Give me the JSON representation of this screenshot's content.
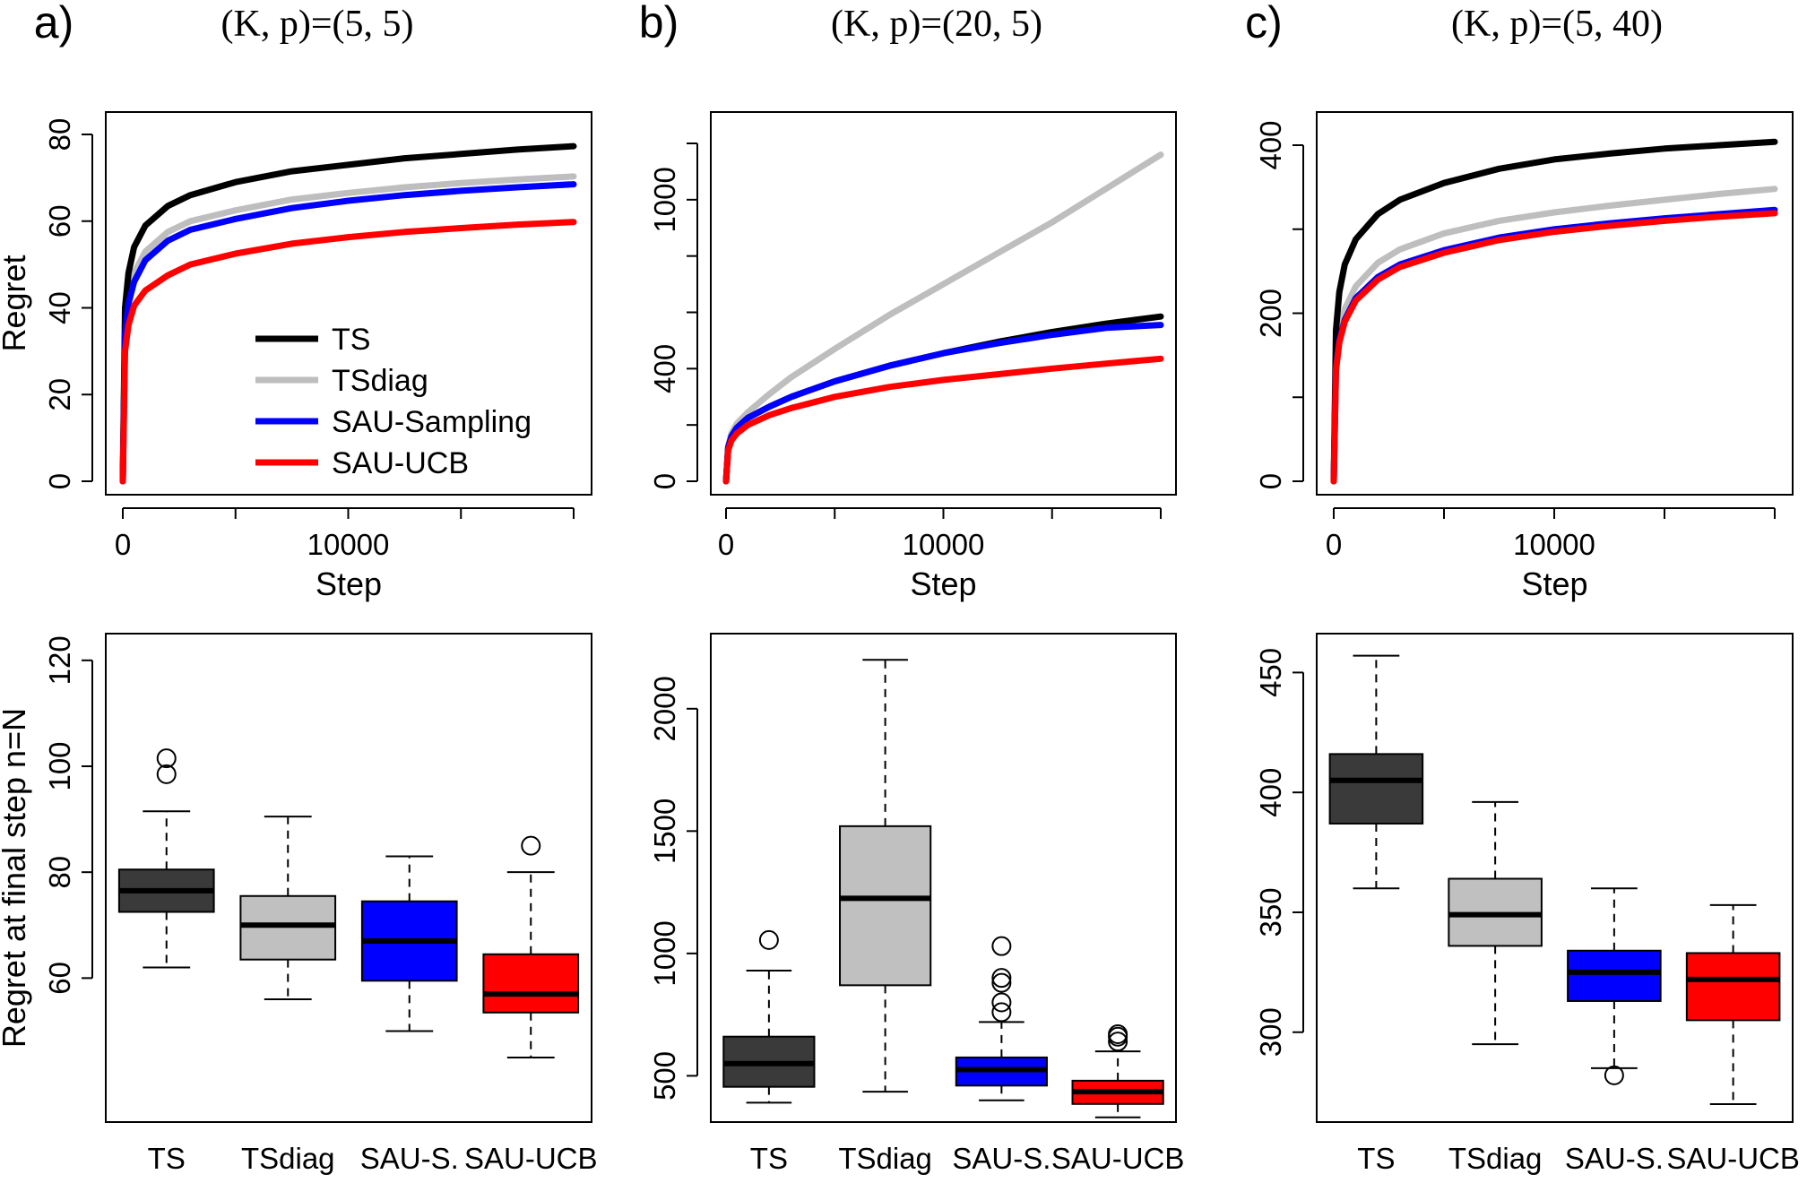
{
  "figure": {
    "panels": [
      {
        "letter": "a)",
        "title": "(K, p)=(5, 5)"
      },
      {
        "letter": "b)",
        "title": "(K, p)=(20, 5)"
      },
      {
        "letter": "c)",
        "title": "(K, p)=(5, 40)"
      }
    ],
    "colors": {
      "TS": "#000000",
      "TSdiag": "#bebebe",
      "SAU-Sampling": "#0000ff",
      "SAU-UCB": "#ff0000"
    },
    "box_colors": {
      "TS": "#3a3a3a",
      "TSdiag": "#c0c0c0",
      "SAU-S.": "#0000ff",
      "SAU-UCB": "#ff0000"
    }
  },
  "chart_data": [
    {
      "type": "line",
      "panel": "a",
      "xlabel": "Step",
      "ylabel": "Regret",
      "xlim": [
        0,
        20000
      ],
      "ylim": [
        0,
        80
      ],
      "xticks": [
        0,
        5000,
        10000,
        15000,
        20000
      ],
      "xtick_labels": [
        "0",
        "",
        "10000",
        "",
        ""
      ],
      "yticks": [
        0,
        20,
        40,
        60,
        80
      ],
      "grid": false,
      "legend_position": "bottom-center",
      "x": [
        0,
        100,
        250,
        500,
        1000,
        2000,
        3000,
        5000,
        7500,
        10000,
        12500,
        15000,
        17500,
        20000
      ],
      "series": [
        {
          "name": "TS",
          "values": [
            0,
            40,
            48,
            54,
            59,
            63.5,
            66,
            69,
            71.5,
            73,
            74.5,
            75.5,
            76.5,
            77.3
          ]
        },
        {
          "name": "TSdiag",
          "values": [
            0,
            36,
            43,
            48,
            53,
            57.5,
            60,
            62.5,
            65,
            66.5,
            67.8,
            68.8,
            69.6,
            70.3
          ]
        },
        {
          "name": "SAU-Sampling",
          "values": [
            0,
            34,
            41,
            46,
            51,
            55.5,
            58,
            60.5,
            63,
            64.7,
            66,
            67,
            67.8,
            68.5
          ]
        },
        {
          "name": "SAU-UCB",
          "values": [
            0,
            30,
            36,
            40.5,
            44,
            47.5,
            50,
            52.5,
            54.8,
            56.3,
            57.5,
            58.4,
            59.2,
            59.8
          ]
        }
      ]
    },
    {
      "type": "line",
      "panel": "b",
      "xlabel": "Step",
      "ylabel": "",
      "xlim": [
        0,
        20000
      ],
      "ylim": [
        0,
        1200
      ],
      "xticks": [
        0,
        5000,
        10000,
        15000,
        20000
      ],
      "xtick_labels": [
        "0",
        "",
        "10000",
        "",
        ""
      ],
      "yticks": [
        0,
        200,
        400,
        600,
        800,
        1000,
        1200
      ],
      "ytick_labels": [
        "0",
        "",
        "400",
        "",
        "",
        "1000",
        ""
      ],
      "grid": false,
      "x": [
        0,
        100,
        250,
        500,
        1000,
        2000,
        3000,
        5000,
        7500,
        10000,
        12500,
        15000,
        17500,
        20000
      ],
      "series": [
        {
          "name": "TS",
          "values": [
            0,
            120,
            160,
            190,
            225,
            265,
            300,
            355,
            410,
            455,
            495,
            530,
            560,
            585
          ]
        },
        {
          "name": "TSdiag",
          "values": [
            0,
            125,
            170,
            205,
            245,
            310,
            370,
            470,
            590,
            700,
            810,
            920,
            1040,
            1160
          ]
        },
        {
          "name": "SAU-Sampling",
          "values": [
            0,
            120,
            160,
            190,
            225,
            265,
            300,
            355,
            410,
            455,
            490,
            520,
            545,
            555
          ]
        },
        {
          "name": "SAU-UCB",
          "values": [
            0,
            110,
            145,
            170,
            200,
            235,
            260,
            300,
            335,
            360,
            380,
            400,
            418,
            435
          ]
        }
      ]
    },
    {
      "type": "line",
      "panel": "c",
      "xlabel": "Step",
      "ylabel": "",
      "xlim": [
        0,
        20000
      ],
      "ylim": [
        0,
        400
      ],
      "xticks": [
        0,
        5000,
        10000,
        15000,
        20000
      ],
      "xtick_labels": [
        "0",
        "",
        "10000",
        "",
        ""
      ],
      "yticks": [
        0,
        100,
        200,
        300,
        400
      ],
      "ytick_labels": [
        "0",
        "",
        "200",
        "",
        "400"
      ],
      "grid": false,
      "x": [
        0,
        100,
        250,
        500,
        1000,
        2000,
        3000,
        5000,
        7500,
        10000,
        12500,
        15000,
        17500,
        20000
      ],
      "series": [
        {
          "name": "TS",
          "values": [
            0,
            180,
            225,
            258,
            288,
            318,
            335,
            355,
            372,
            383,
            390,
            396,
            400,
            404
          ]
        },
        {
          "name": "TSdiag",
          "values": [
            0,
            145,
            180,
            205,
            232,
            260,
            276,
            295,
            310,
            320,
            328,
            335,
            342,
            348
          ]
        },
        {
          "name": "SAU-Sampling",
          "values": [
            0,
            135,
            168,
            192,
            218,
            243,
            258,
            275,
            290,
            300,
            307,
            313,
            318,
            323
          ]
        },
        {
          "name": "SAU-UCB",
          "values": [
            0,
            132,
            165,
            190,
            215,
            240,
            255,
            272,
            287,
            297,
            304,
            310,
            315,
            319
          ]
        }
      ]
    },
    {
      "type": "box",
      "panel": "a",
      "ylabel": "Regret at final step n=N",
      "ylim": [
        45,
        122
      ],
      "yticks": [
        60,
        80,
        100,
        120
      ],
      "categories": [
        "TS",
        "TSdiag",
        "SAU-S.",
        "SAU-UCB"
      ],
      "boxes": [
        {
          "name": "TS",
          "whisker_low": 62,
          "q1": 72.5,
          "median": 76.5,
          "q3": 80.5,
          "whisker_high": 91.5,
          "outliers": [
            98.5,
            101.5
          ]
        },
        {
          "name": "TSdiag",
          "whisker_low": 56,
          "q1": 63.5,
          "median": 70,
          "q3": 75.5,
          "whisker_high": 90.5,
          "outliers": []
        },
        {
          "name": "SAU-S.",
          "whisker_low": 50,
          "q1": 59.5,
          "median": 67,
          "q3": 74.5,
          "whisker_high": 83,
          "outliers": []
        },
        {
          "name": "SAU-UCB",
          "whisker_low": 45,
          "q1": 53.5,
          "median": 57,
          "q3": 64.5,
          "whisker_high": 80,
          "outliers": [
            85
          ]
        }
      ]
    },
    {
      "type": "box",
      "panel": "b",
      "ylabel": "",
      "ylim": [
        300,
        2230
      ],
      "yticks": [
        500,
        1000,
        1500,
        2000
      ],
      "categories": [
        "TS",
        "TSdiag",
        "SAU-S.",
        "SAU-UCB"
      ],
      "boxes": [
        {
          "name": "TS",
          "whisker_low": 390,
          "q1": 455,
          "median": 550,
          "q3": 660,
          "whisker_high": 930,
          "outliers": [
            1055
          ]
        },
        {
          "name": "TSdiag",
          "whisker_low": 435,
          "q1": 870,
          "median": 1225,
          "q3": 1520,
          "whisker_high": 2200,
          "outliers": []
        },
        {
          "name": "SAU-S.",
          "whisker_low": 400,
          "q1": 460,
          "median": 525,
          "q3": 575,
          "whisker_high": 720,
          "outliers": [
            760,
            800,
            880,
            900,
            1030
          ]
        },
        {
          "name": "SAU-UCB",
          "whisker_low": 330,
          "q1": 385,
          "median": 435,
          "q3": 480,
          "whisker_high": 600,
          "outliers": [
            640,
            660,
            670
          ]
        }
      ]
    },
    {
      "type": "box",
      "panel": "c",
      "ylabel": "",
      "ylim": [
        270,
        458
      ],
      "yticks": [
        300,
        350,
        400,
        450
      ],
      "categories": [
        "TS",
        "TSdiag",
        "SAU-S.",
        "SAU-UCB"
      ],
      "boxes": [
        {
          "name": "TS",
          "whisker_low": 360,
          "q1": 387,
          "median": 405,
          "q3": 416,
          "whisker_high": 457,
          "outliers": []
        },
        {
          "name": "TSdiag",
          "whisker_low": 295,
          "q1": 336,
          "median": 349,
          "q3": 364,
          "whisker_high": 396,
          "outliers": []
        },
        {
          "name": "SAU-S.",
          "whisker_low": 285,
          "q1": 313,
          "median": 325,
          "q3": 334,
          "whisker_high": 360,
          "outliers": [
            282
          ]
        },
        {
          "name": "SAU-UCB",
          "whisker_low": 270,
          "q1": 305,
          "median": 322,
          "q3": 333,
          "whisker_high": 353,
          "outliers": []
        }
      ]
    }
  ]
}
